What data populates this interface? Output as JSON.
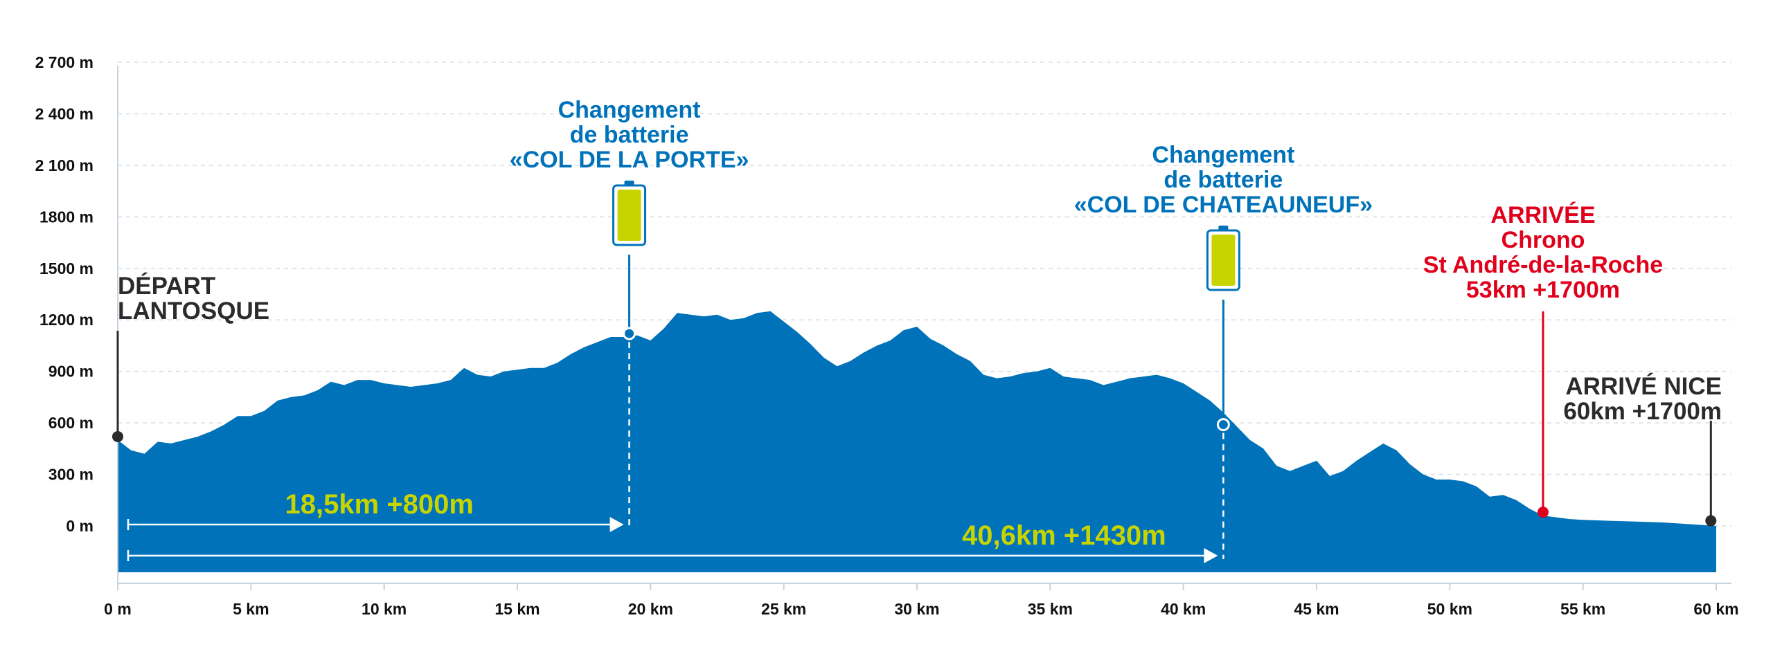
{
  "colors": {
    "profile": "#0072b9",
    "battery": "#c8d400",
    "arrivee": "#e0001b",
    "dark": "#2b2b2b",
    "grid": "#d6dde5",
    "distance_text": "#c8d400"
  },
  "chart_data": {
    "type": "area",
    "title": "",
    "xlabel": "",
    "ylabel": "",
    "xlim": [
      0,
      60
    ],
    "ylim": [
      -250,
      2700
    ],
    "grid": true,
    "x_ticks": [
      {
        "value": 0,
        "label": "0 m"
      },
      {
        "value": 5,
        "label": "5 km"
      },
      {
        "value": 10,
        "label": "10 km"
      },
      {
        "value": 15,
        "label": "15 km"
      },
      {
        "value": 20,
        "label": "20 km"
      },
      {
        "value": 25,
        "label": "25 km"
      },
      {
        "value": 30,
        "label": "30 km"
      },
      {
        "value": 35,
        "label": "35 km"
      },
      {
        "value": 40,
        "label": "40 km"
      },
      {
        "value": 45,
        "label": "45 km"
      },
      {
        "value": 50,
        "label": "50 km"
      },
      {
        "value": 55,
        "label": "55 km"
      },
      {
        "value": 60,
        "label": "60 km"
      }
    ],
    "y_ticks": [
      {
        "value": 0,
        "label": "0 m"
      },
      {
        "value": 300,
        "label": "300 m"
      },
      {
        "value": 600,
        "label": "600 m"
      },
      {
        "value": 900,
        "label": "900 m"
      },
      {
        "value": 1200,
        "label": "1200 m"
      },
      {
        "value": 1500,
        "label": "1500 m"
      },
      {
        "value": 1800,
        "label": "1800 m"
      },
      {
        "value": 2100,
        "label": "2 100 m"
      },
      {
        "value": 2400,
        "label": "2 400 m"
      },
      {
        "value": 2700,
        "label": "2 700 m"
      }
    ],
    "profile": {
      "x": [
        0,
        0.5,
        1,
        1.5,
        2,
        2.5,
        3,
        3.5,
        4,
        4.5,
        5,
        5.5,
        6,
        6.5,
        7,
        7.5,
        8,
        8.5,
        9,
        9.5,
        10,
        10.5,
        11,
        11.5,
        12,
        12.5,
        13,
        13.5,
        14,
        14.5,
        15,
        15.5,
        16,
        16.5,
        17,
        17.5,
        18,
        18.5,
        19,
        19.5,
        20,
        20.5,
        21,
        21.5,
        22,
        22.5,
        23,
        23.5,
        24,
        24.5,
        25,
        25.5,
        26,
        26.5,
        27,
        27.5,
        28,
        28.5,
        29,
        29.5,
        30,
        30.5,
        31,
        31.5,
        32,
        32.5,
        33,
        33.5,
        34,
        34.5,
        35,
        35.5,
        36,
        36.5,
        37,
        37.5,
        38,
        38.5,
        39,
        39.5,
        40,
        40.5,
        41,
        41.5,
        42,
        42.5,
        43,
        43.5,
        44,
        44.5,
        45,
        45.5,
        46,
        46.5,
        47,
        47.5,
        48,
        48.5,
        49,
        49.5,
        50,
        50.5,
        51,
        51.5,
        52,
        52.5,
        53,
        53.5,
        54,
        54.5,
        55,
        56,
        57,
        58,
        59,
        60
      ],
      "y": [
        500,
        440,
        420,
        490,
        480,
        500,
        520,
        550,
        590,
        640,
        640,
        670,
        730,
        750,
        760,
        790,
        840,
        820,
        850,
        850,
        830,
        820,
        810,
        820,
        830,
        850,
        920,
        880,
        870,
        900,
        910,
        920,
        920,
        950,
        1000,
        1040,
        1070,
        1100,
        1100,
        1110,
        1080,
        1150,
        1240,
        1230,
        1220,
        1230,
        1200,
        1210,
        1240,
        1250,
        1190,
        1130,
        1060,
        980,
        930,
        960,
        1010,
        1050,
        1080,
        1140,
        1160,
        1090,
        1050,
        1000,
        960,
        880,
        860,
        870,
        890,
        900,
        920,
        870,
        860,
        850,
        820,
        840,
        860,
        870,
        880,
        860,
        830,
        780,
        730,
        660,
        580,
        500,
        450,
        350,
        320,
        350,
        380,
        290,
        320,
        380,
        430,
        480,
        440,
        360,
        300,
        270,
        270,
        260,
        230,
        170,
        180,
        150,
        100,
        60,
        50,
        40,
        35,
        30,
        25,
        20,
        10,
        0
      ]
    },
    "annotations": {
      "depart": {
        "x": 0,
        "y": 520,
        "label_lines": [
          "DÉPART",
          "LANTOSQUE"
        ]
      },
      "battery1": {
        "x": 19.2,
        "y": 1120,
        "label_lines": [
          "Changement",
          "de batterie",
          "«COL DE LA PORTE»"
        ]
      },
      "battery2": {
        "x": 41.5,
        "y": 590,
        "label_lines": [
          "Changement",
          "de batterie",
          "«COL DE CHATEAUNEUF»"
        ]
      },
      "arrivee": {
        "x": 53.5,
        "y": 80,
        "label_lines": [
          "ARRIVÉE",
          "Chrono",
          "St André-de-la-Roche",
          "53km +1700m"
        ]
      },
      "nice": {
        "x": 59.8,
        "y": 30,
        "label_lines": [
          "ARRIVÉ NICE",
          "60km +1700m"
        ]
      }
    },
    "segments": [
      {
        "from": 0,
        "to": 19.2,
        "label": "18,5km +800m"
      },
      {
        "from": 0,
        "to": 41.5,
        "label": "40,6km +1430m"
      }
    ]
  }
}
